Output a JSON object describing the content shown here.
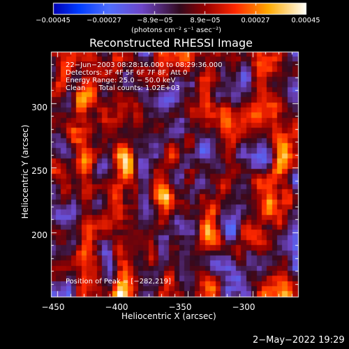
{
  "chart_data": {
    "type": "heatmap",
    "title": "Reconstructed RHESSI Image",
    "xlabel": "Heliocentric X (arcsec)",
    "ylabel": "Heliocentric Y (arcsec)",
    "xlim": [
      -455,
      -265
    ],
    "ylim": [
      150,
      340
    ],
    "x_ticks": [
      -450,
      -400,
      -350,
      -300
    ],
    "x_tick_labels": [
      "−450",
      "−400",
      "−350",
      "−300"
    ],
    "y_ticks": [
      200,
      250,
      300
    ],
    "y_tick_labels": [
      "200",
      "250",
      "300"
    ],
    "colorbar": {
      "ticks": [
        -0.00045,
        -0.00027,
        -8.9e-05,
        8.9e-05,
        0.00027,
        0.00045
      ],
      "tick_labels": [
        "−0.00045",
        "−0.00027",
        "−8.9e−05",
        "8.9e−05",
        "0.00027",
        "0.00045"
      ],
      "unit_label": "(photons cm⁻² s⁻¹ asec⁻²)",
      "range": [
        -0.00045,
        0.00045
      ]
    },
    "annotations": [
      "22−Jun−2003 08:28:16.000 to 08:29:36.000",
      "Detectors: 3F 4F 5F 6F 7F 8F, Att 0",
      "Energy Range: 25.0 − 50.0 keV",
      "Clean      Total counts: 1.02E+03"
    ],
    "peak_label": "Position of Peak = [−282,219]",
    "peak_position": [
      -282,
      219
    ],
    "grid": false
  },
  "footer": {
    "date": "2−May−2022 19:29"
  }
}
